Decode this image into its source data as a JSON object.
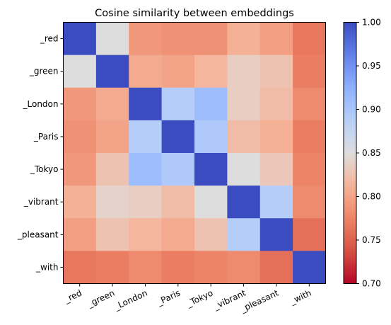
{
  "chart_data": {
    "type": "heatmap",
    "title": "Cosine similarity between embeddings",
    "x_categories": [
      "_red",
      "_green",
      "_London",
      "_Paris",
      "_Tokyo",
      "_vibrant",
      "_pleasant",
      "_with"
    ],
    "y_categories": [
      "_red",
      "_green",
      "_London",
      "_Paris",
      "_Tokyo",
      "_vibrant",
      "_pleasant",
      "_with"
    ],
    "values": [
      [
        1.0,
        0.85,
        0.79,
        0.785,
        0.785,
        0.81,
        0.795,
        0.765
      ],
      [
        0.85,
        1.0,
        0.805,
        0.8,
        0.815,
        0.835,
        0.825,
        0.77
      ],
      [
        0.79,
        0.805,
        1.0,
        0.89,
        0.91,
        0.835,
        0.82,
        0.78
      ],
      [
        0.785,
        0.8,
        0.89,
        1.0,
        0.895,
        0.82,
        0.81,
        0.77
      ],
      [
        0.79,
        0.825,
        0.91,
        0.895,
        1.0,
        0.85,
        0.83,
        0.775
      ],
      [
        0.81,
        0.84,
        0.835,
        0.82,
        0.85,
        1.0,
        0.89,
        0.78
      ],
      [
        0.795,
        0.825,
        0.815,
        0.805,
        0.825,
        0.89,
        1.0,
        0.76
      ],
      [
        0.765,
        0.77,
        0.78,
        0.77,
        0.775,
        0.78,
        0.76,
        1.0
      ]
    ],
    "colormap": "coolwarm_r",
    "vmin": 0.7,
    "vmax": 1.0,
    "colorbar_ticks": [
      "1.00",
      "0.95",
      "0.90",
      "0.85",
      "0.80",
      "0.75",
      "0.70"
    ],
    "colorbar_tick_values": [
      1.0,
      0.95,
      0.9,
      0.85,
      0.8,
      0.75,
      0.7
    ],
    "x_tick_rotation_deg": 25
  }
}
